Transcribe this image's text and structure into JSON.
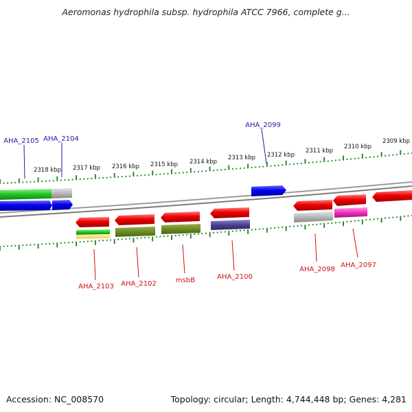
{
  "title": "Aeromonas hydrophila subsp. hydrophila ATCC 7966, complete g...",
  "footer": {
    "accession": "Accession: NC_008570",
    "summary": "Topology: circular; Length: 4,744,448 bp; Genes: 4,281"
  },
  "colors": {
    "forward_label": "#1a1aa6",
    "reverse_label": "#cc1111",
    "tick": "#2a8a2a",
    "backbone": "#8c8c8c"
  },
  "kbp_ticks": [
    "2309 kbp",
    "2310 kbp",
    "2311 kbp",
    "2312 kbp",
    "2313 kbp",
    "2314 kbp",
    "2315 kbp",
    "2316 kbp",
    "2317 kbp",
    "2318 kbp"
  ],
  "forward_labels": [
    "AHA_2105",
    "AHA_2104",
    "AHA_2099"
  ],
  "reverse_labels": [
    "AHA_2103",
    "AHA_2102",
    "msbB",
    "AHA_2100",
    "AHA_2098",
    "AHA_2097"
  ]
}
